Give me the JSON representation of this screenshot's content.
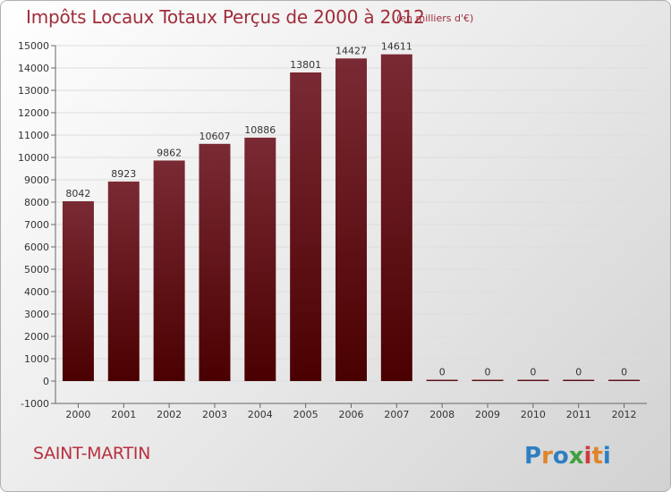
{
  "header": {
    "title": "Impôts Locaux Totaux Perçus de 2000 à 2012",
    "unit_note": "(en milliers d'€)"
  },
  "commune": {
    "name": "SAINT-MARTIN"
  },
  "brand": {
    "logo_text": "Proxiti"
  },
  "colors": {
    "bar_top": "#7a2a34",
    "bar_bottom": "#4a0000",
    "title": "#a02c3a",
    "commune": "#b83040"
  },
  "chart_data": {
    "type": "bar",
    "title": "Impôts Locaux Totaux Perçus de 2000 à 2012",
    "subtitle": "(en milliers d'€)",
    "xlabel": "",
    "ylabel": "",
    "ylim": [
      -1000,
      15000
    ],
    "yticks": [
      -1000,
      0,
      1000,
      2000,
      3000,
      4000,
      5000,
      6000,
      7000,
      8000,
      9000,
      10000,
      11000,
      12000,
      13000,
      14000,
      15000
    ],
    "grid": true,
    "categories": [
      "2000",
      "2001",
      "2002",
      "2003",
      "2004",
      "2005",
      "2006",
      "2007",
      "2008",
      "2009",
      "2010",
      "2011",
      "2012"
    ],
    "values": [
      8042,
      8923,
      9862,
      10607,
      10886,
      13801,
      14427,
      14611,
      0,
      0,
      0,
      0,
      0
    ],
    "data_labels": [
      "8042",
      "8923",
      "9862",
      "10607",
      "10886",
      "13801",
      "14427",
      "14611",
      "0",
      "0",
      "0",
      "0",
      "0"
    ]
  }
}
